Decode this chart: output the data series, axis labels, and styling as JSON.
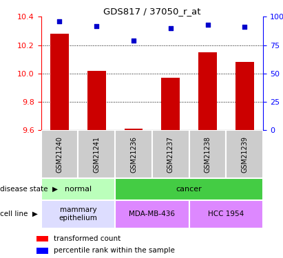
{
  "title": "GDS817 / 37050_r_at",
  "samples": [
    "GSM21240",
    "GSM21241",
    "GSM21236",
    "GSM21237",
    "GSM21238",
    "GSM21239"
  ],
  "bar_values": [
    10.28,
    10.02,
    9.61,
    9.97,
    10.15,
    10.08
  ],
  "percentile_values": [
    96,
    92,
    79,
    90,
    93,
    91
  ],
  "ylim_left": [
    9.6,
    10.4
  ],
  "ylim_right": [
    0,
    100
  ],
  "yticks_left": [
    9.6,
    9.8,
    10.0,
    10.2,
    10.4
  ],
  "yticks_right": [
    0,
    25,
    50,
    75,
    100
  ],
  "bar_color": "#cc0000",
  "dot_color": "#0000cc",
  "normal_light": "#bbffbb",
  "normal_dark": "#44cc44",
  "cancer_bg": "#44cc44",
  "mammary_bg": "#ddddff",
  "mda_bg": "#dd88ff",
  "hcc_bg": "#dd88ff",
  "sample_row_bg": "#cccccc",
  "legend_red": "transformed count",
  "legend_blue": "percentile rank within the sample",
  "grid_lines": [
    9.8,
    10.0,
    10.2
  ]
}
